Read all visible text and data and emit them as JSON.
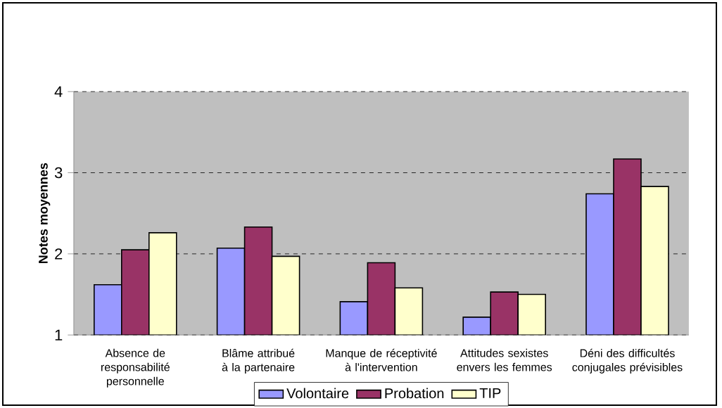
{
  "chart_data": {
    "type": "bar",
    "ylabel": "Notes moyennes",
    "categories": [
      "Absence de responsabilité personnelle",
      "Blâme attribué à la partenaire",
      "Manque de réceptivité à l'intervention",
      "Attitudes sexistes envers les femmes",
      "Déni des difficultés conjugales prévisibles"
    ],
    "series": [
      {
        "name": "Volontaire",
        "color": "#9999ff",
        "values": [
          1.62,
          2.07,
          1.41,
          1.22,
          2.74
        ]
      },
      {
        "name": "Probation",
        "color": "#993366",
        "values": [
          2.05,
          2.33,
          1.89,
          1.53,
          3.17
        ]
      },
      {
        "name": "TIP",
        "color": "#ffffcc",
        "values": [
          2.26,
          1.97,
          1.58,
          1.5,
          2.83
        ]
      }
    ],
    "ylim": [
      1,
      4
    ],
    "yticks": [
      1,
      2,
      3,
      4
    ],
    "grid": "y",
    "legend": "bottom"
  }
}
